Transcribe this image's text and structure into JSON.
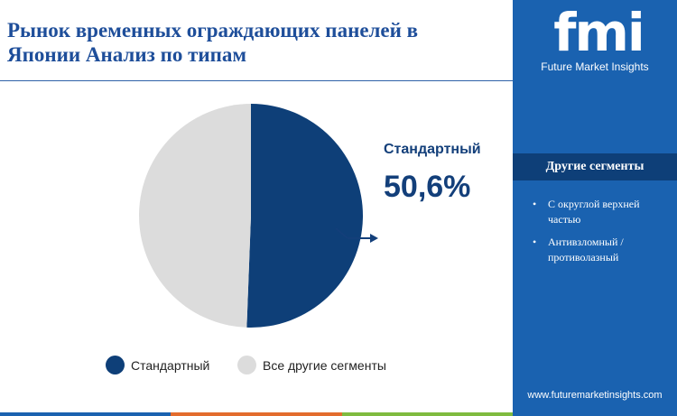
{
  "header": {
    "title": "Рынок временных ограждающих панелей в Японии Анализ по типам"
  },
  "brand": {
    "logo": "fmi",
    "tagline": "Future Market Insights",
    "website": "www.futuremarketinsights.com"
  },
  "sidebar": {
    "other_segments_title": "Другие сегменты",
    "items": [
      "С округлой верхней частью",
      "Антивзломный / противолазный"
    ]
  },
  "callout": {
    "label": "Стандартный",
    "value": "50,6%"
  },
  "chart_data": {
    "type": "pie",
    "title": "",
    "slices": [
      {
        "name": "Стандартный",
        "value": 50.6,
        "color": "#0e3f78"
      },
      {
        "name": "Все другие сегменты",
        "value": 49.4,
        "color": "#dcdcdc"
      }
    ],
    "legend_position": "bottom"
  },
  "colors": {
    "accent": "#1a62b0",
    "dark": "#0e3f78",
    "title": "#1e4e9a"
  },
  "bottom_strip_colors": [
    "#1a62b0",
    "#e36c2d",
    "#7fbb3f"
  ]
}
